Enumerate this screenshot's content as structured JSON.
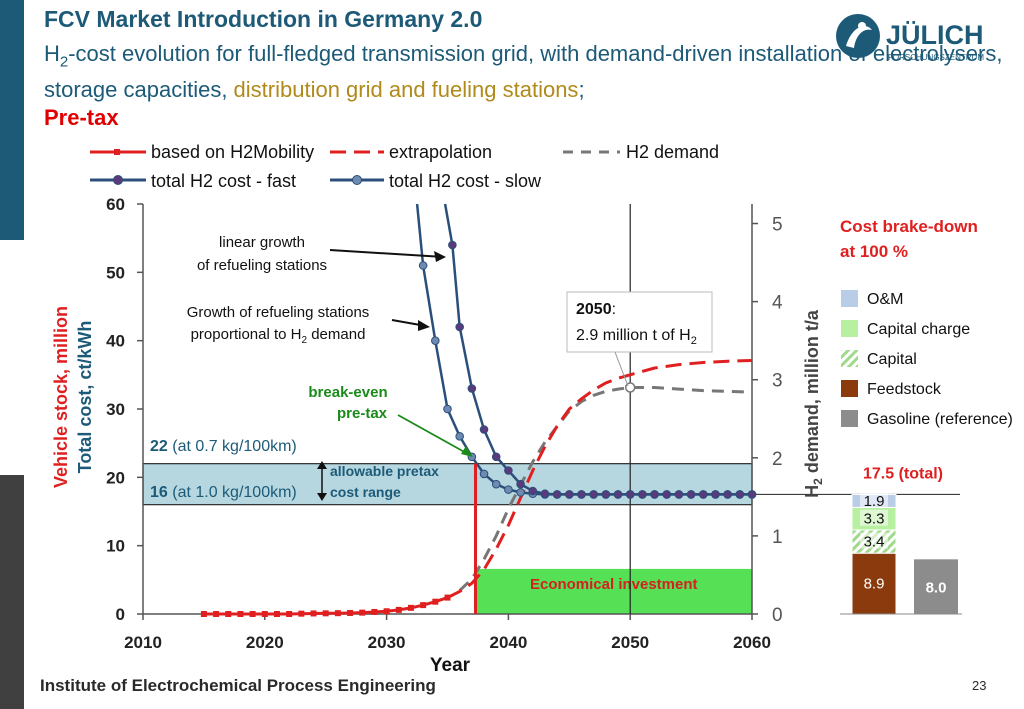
{
  "header": {
    "title": "FCV Market Introduction in Germany 2.0",
    "subtitle_h": "H",
    "subtitle_sub": "2",
    "subtitle_part1": "-cost evolution for full-fledged transmission grid, with demand-driven installation of electrolysers, storage capacities, ",
    "subtitle_gold": "distribution grid and fueling stations",
    "subtitle_semicolon": ";",
    "subtitle_pretax": "Pre-tax"
  },
  "logo": {
    "name": "JÜLICH",
    "tagline": "FORSCHUNGSZENTRUM"
  },
  "footer": {
    "institute": "Institute of Electrochemical Process Engineering",
    "page": "23"
  },
  "colors": {
    "red": "#e02020",
    "blue": "#2a4f7a",
    "slow": "#6f8ab0",
    "gray": "#777777",
    "band": "#9ec9d6",
    "green": "#55e055"
  },
  "chart_data": [
    {
      "type": "line",
      "xlabel": "Year",
      "xlim": [
        2010,
        2060
      ],
      "x_ticks": [
        "2010",
        "2020",
        "2030",
        "2040",
        "2050",
        "2060"
      ],
      "y_left": {
        "label_line1": "Vehicle stock, million",
        "label_line2": "Total cost, ct/kWh",
        "lim": [
          0,
          60
        ],
        "ticks": [
          "0",
          "10",
          "20",
          "30",
          "40",
          "50",
          "60"
        ]
      },
      "y_right": {
        "label_h": "H",
        "label_sub": "2",
        "label_rest": " demand, million t/a",
        "lim": [
          0,
          5.25
        ],
        "ticks": [
          "0",
          "1",
          "2",
          "3",
          "4",
          "5"
        ]
      },
      "legend": [
        {
          "label": "based on H2Mobility",
          "style": "red-solid-square"
        },
        {
          "label": "extrapolation",
          "style": "red-dashed"
        },
        {
          "label": "H2 demand",
          "style": "gray-dashed"
        },
        {
          "label": "total H2 cost - fast",
          "style": "blue-circle"
        },
        {
          "label": "total H2 cost - slow",
          "style": "lightblue-circle"
        }
      ],
      "series": [
        {
          "name": "based on H2Mobility",
          "axis": "left",
          "x": [
            2015,
            2016,
            2017,
            2018,
            2019,
            2020,
            2021,
            2022,
            2023,
            2024,
            2025,
            2026,
            2027,
            2028,
            2029,
            2030,
            2031,
            2032,
            2033,
            2034,
            2035
          ],
          "y": [
            0,
            0,
            0,
            0,
            0,
            0,
            0,
            0,
            0.05,
            0.08,
            0.1,
            0.12,
            0.15,
            0.2,
            0.3,
            0.4,
            0.6,
            0.9,
            1.3,
            1.8,
            2.4
          ]
        },
        {
          "name": "extrapolation",
          "axis": "left",
          "x": [
            2035,
            2036,
            2037,
            2038,
            2039,
            2040,
            2041,
            2042,
            2043,
            2044,
            2045,
            2046,
            2047,
            2048,
            2049,
            2050,
            2052,
            2054,
            2056,
            2058,
            2060
          ],
          "y": [
            2.4,
            3.3,
            4.5,
            6.5,
            9.5,
            13,
            17,
            21,
            24.5,
            27.5,
            30,
            31.5,
            32.8,
            33.8,
            34.5,
            35,
            36,
            36.5,
            36.8,
            37,
            37.1
          ]
        },
        {
          "name": "H2 demand",
          "axis": "right",
          "x": [
            2036,
            2037,
            2038,
            2039,
            2040,
            2041,
            2042,
            2043,
            2044,
            2045,
            2046,
            2047,
            2048,
            2049,
            2050,
            2052,
            2054,
            2056,
            2058,
            2060
          ],
          "y": [
            0.3,
            0.45,
            0.7,
            1.0,
            1.35,
            1.65,
            1.95,
            2.2,
            2.4,
            2.6,
            2.72,
            2.8,
            2.85,
            2.88,
            2.9,
            2.9,
            2.88,
            2.86,
            2.85,
            2.84
          ]
        },
        {
          "name": "total H2 cost - fast",
          "axis": "left",
          "x": [
            2034.8,
            2035.4,
            2036,
            2037,
            2038,
            2039,
            2040,
            2041,
            2042,
            2043,
            2044,
            2045,
            2046,
            2047,
            2048,
            2049,
            2050,
            2051,
            2052,
            2053,
            2054,
            2055,
            2056,
            2057,
            2058,
            2059,
            2060
          ],
          "y": [
            60,
            54,
            42,
            33,
            27,
            23,
            21,
            19,
            18,
            17.6,
            17.5,
            17.5,
            17.5,
            17.5,
            17.5,
            17.5,
            17.5,
            17.5,
            17.5,
            17.5,
            17.5,
            17.5,
            17.5,
            17.5,
            17.5,
            17.5,
            17.5
          ]
        },
        {
          "name": "total H2 cost - slow",
          "axis": "left",
          "x": [
            2032.5,
            2033,
            2034,
            2035,
            2036,
            2037,
            2038,
            2039,
            2040,
            2041,
            2042,
            2043,
            2044,
            2045,
            2046,
            2047,
            2048,
            2049,
            2050,
            2051,
            2052,
            2053,
            2054,
            2055,
            2056,
            2057,
            2058,
            2059,
            2060
          ],
          "y": [
            60,
            51,
            40,
            30,
            26,
            23,
            20.5,
            19,
            18.2,
            17.8,
            17.6,
            17.5,
            17.5,
            17.5,
            17.5,
            17.5,
            17.5,
            17.5,
            17.5,
            17.5,
            17.5,
            17.5,
            17.5,
            17.5,
            17.5,
            17.5,
            17.5,
            17.5,
            17.5
          ]
        }
      ],
      "break_even_year": 2037.3,
      "band": {
        "from": 16,
        "to": 22
      },
      "economical_from_year": 2037.3,
      "economical_to_year": 2060,
      "economical_height": 6.6,
      "marker_2050": {
        "x": 2050,
        "h2": 2.9
      },
      "annotations": {
        "linear_growth_1": "linear growth",
        "linear_growth_2": "of refueling stations",
        "proportional_1": "Growth of refueling stations",
        "proportional_2a": "proportional to H",
        "proportional_2sub": "2",
        "proportional_2b": " demand",
        "break_even_1": "break-even",
        "break_even_2": "pre-tax",
        "band_top_bold": "22",
        "band_top_rest": " (at 0.7 kg/100km)",
        "band_bottom_bold": "16",
        "band_bottom_rest": " (at 1.0 kg/100km)",
        "band_mid_1": "allowable pretax",
        "band_mid_2": "cost range",
        "box_year": "2050",
        "box_colon": ":",
        "box_line2a": "2.9 million t of H",
        "box_line2sub": "2",
        "economical": "Economical investment"
      }
    },
    {
      "type": "bar",
      "title_line1": "Cost brake-down",
      "title_line2": "at 100 %",
      "total_label": "17.5 (total)",
      "stack": [
        {
          "name": "Feedstock",
          "value": 8.9,
          "label": "8.9",
          "color": "#8b3a0e"
        },
        {
          "name": "Capital",
          "value": 3.4,
          "label": "3.4",
          "color": "#9fd98a"
        },
        {
          "name": "Capital charge",
          "value": 3.3,
          "label": "3.3",
          "color": "#b6f0a0"
        },
        {
          "name": "O&M",
          "value": 1.9,
          "label": "1.9",
          "color": "#b9cde6"
        }
      ],
      "reference": {
        "name": "Gasoline (reference)",
        "value": 8.0,
        "label": "8.0",
        "color": "#8c8c8c"
      },
      "legend": [
        {
          "label": "O&M",
          "color": "#b9cde6",
          "hatched": false
        },
        {
          "label": "Capital charge",
          "color": "#b6f0a0",
          "hatched": false
        },
        {
          "label": "Capital",
          "color": "#9fd98a",
          "hatched": true
        },
        {
          "label": "Feedstock",
          "color": "#8b3a0e",
          "hatched": false
        },
        {
          "label": "Gasoline (reference)",
          "color": "#8c8c8c",
          "hatched": false
        }
      ]
    }
  ]
}
